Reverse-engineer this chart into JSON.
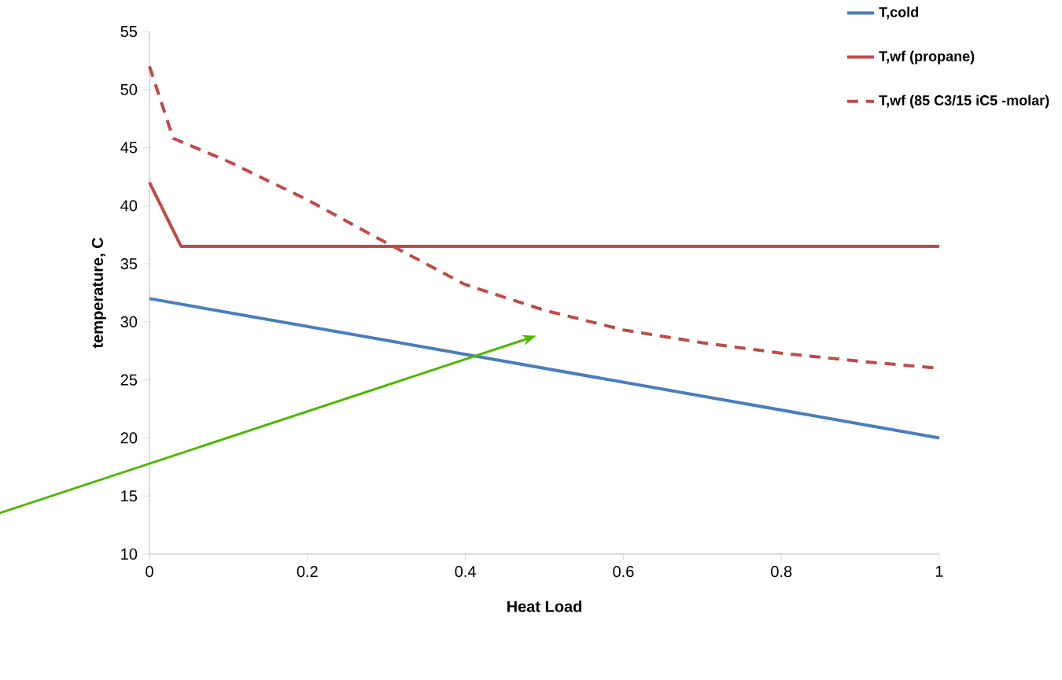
{
  "chart_data": {
    "type": "line",
    "xlabel": "Heat Load",
    "ylabel": "temperature, C",
    "xlim": [
      0,
      1
    ],
    "xticks": [
      0,
      0.2,
      0.4,
      0.6,
      0.8,
      1
    ],
    "ylim": [
      10,
      55
    ],
    "yticks": [
      10,
      15,
      20,
      25,
      30,
      35,
      40,
      45,
      50,
      55
    ],
    "legend": "top right",
    "marker": "none",
    "series": [
      {
        "name": "T,cold",
        "color": "#4a7ebb",
        "line_style": "solid",
        "x": [
          0,
          1
        ],
        "values": [
          32,
          20
        ]
      },
      {
        "name": "T,wf (propane)",
        "color": "#be4b48",
        "line_style": "solid",
        "x": [
          0,
          0.04,
          1
        ],
        "values": [
          42,
          36.5,
          36.5
        ]
      },
      {
        "name": "T,wf (85 C3/15 iC5 -molar)",
        "color": "#be4b48",
        "line_style": "dashed",
        "x": [
          0,
          0.03,
          0.1,
          0.2,
          0.3,
          0.4,
          0.5,
          0.6,
          0.7,
          0.8,
          0.9,
          1
        ],
        "values": [
          52,
          45.8,
          43.8,
          40.5,
          36.8,
          33.2,
          31,
          29.3,
          28.2,
          27.3,
          26.6,
          26
        ]
      }
    ]
  }
}
